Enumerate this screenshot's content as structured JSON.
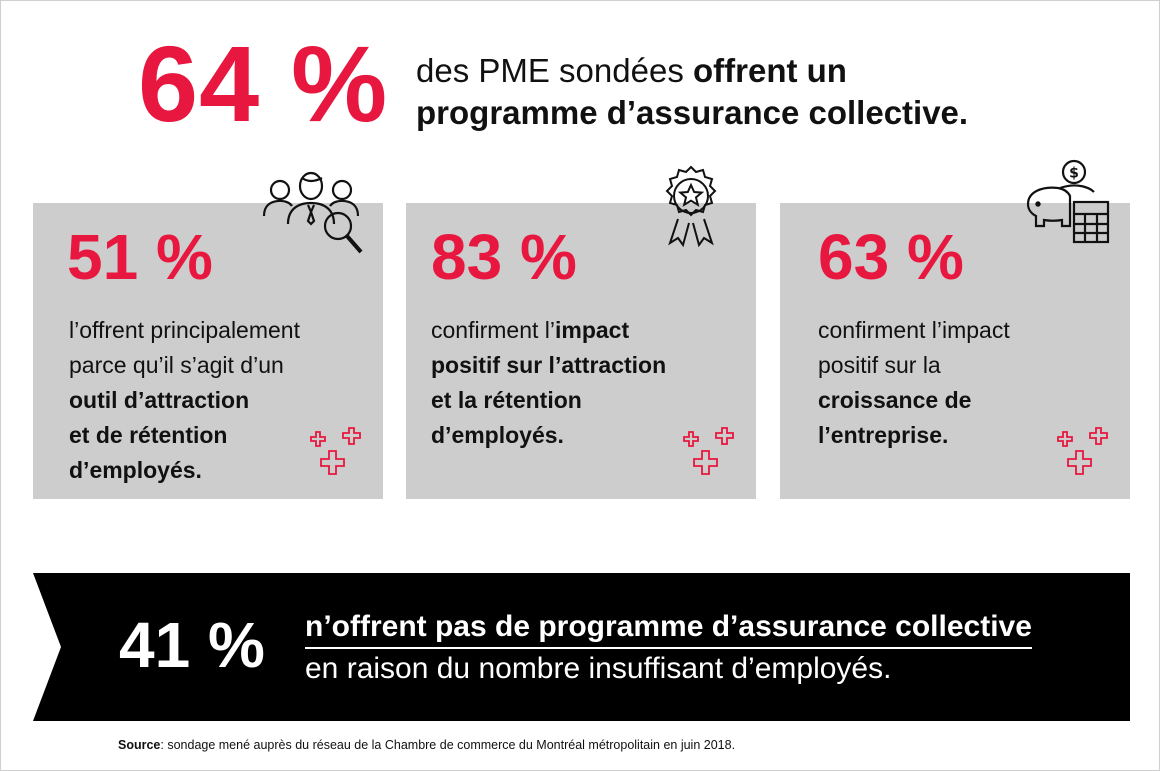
{
  "hero": {
    "percent": "64 %",
    "text_regular": "des PME sondées ",
    "text_bold_1": "offrent un",
    "text_bold_2": "programme d’assurance collective."
  },
  "cards": [
    {
      "percent": "51 %",
      "line1": "l’offrent principalement",
      "line2": "parce qu’il s’agit d’un",
      "line3": "outil d’attraction",
      "line4": "et de rétention",
      "line5": "d’employés.",
      "icon": "people-search-icon"
    },
    {
      "percent": "83 %",
      "line1": "confirment l’",
      "line1_bold": "impact",
      "line2": "positif sur l’attraction",
      "line3": "et la rétention",
      "line4": "d’employés.",
      "icon": "award-badge-icon"
    },
    {
      "percent": "63 %",
      "line1": "confirment l’impact",
      "line2": "positif sur la",
      "line3": "croissance de",
      "line4": "l’entreprise.",
      "icon": "piggy-bank-calculator-icon"
    }
  ],
  "banner": {
    "percent": "41 %",
    "line1": "n’offrent pas de programme d’assurance collective",
    "line2": "en raison du nombre insuffisant d’employés."
  },
  "source": {
    "label": "Source",
    "text": ": sondage mené auprès du réseau de la Chambre de commerce du Montréal métropolitain en juin 2018."
  },
  "colors": {
    "accent": "#e8173f",
    "card_bg": "#cdcdcd",
    "banner_bg": "#000000"
  }
}
